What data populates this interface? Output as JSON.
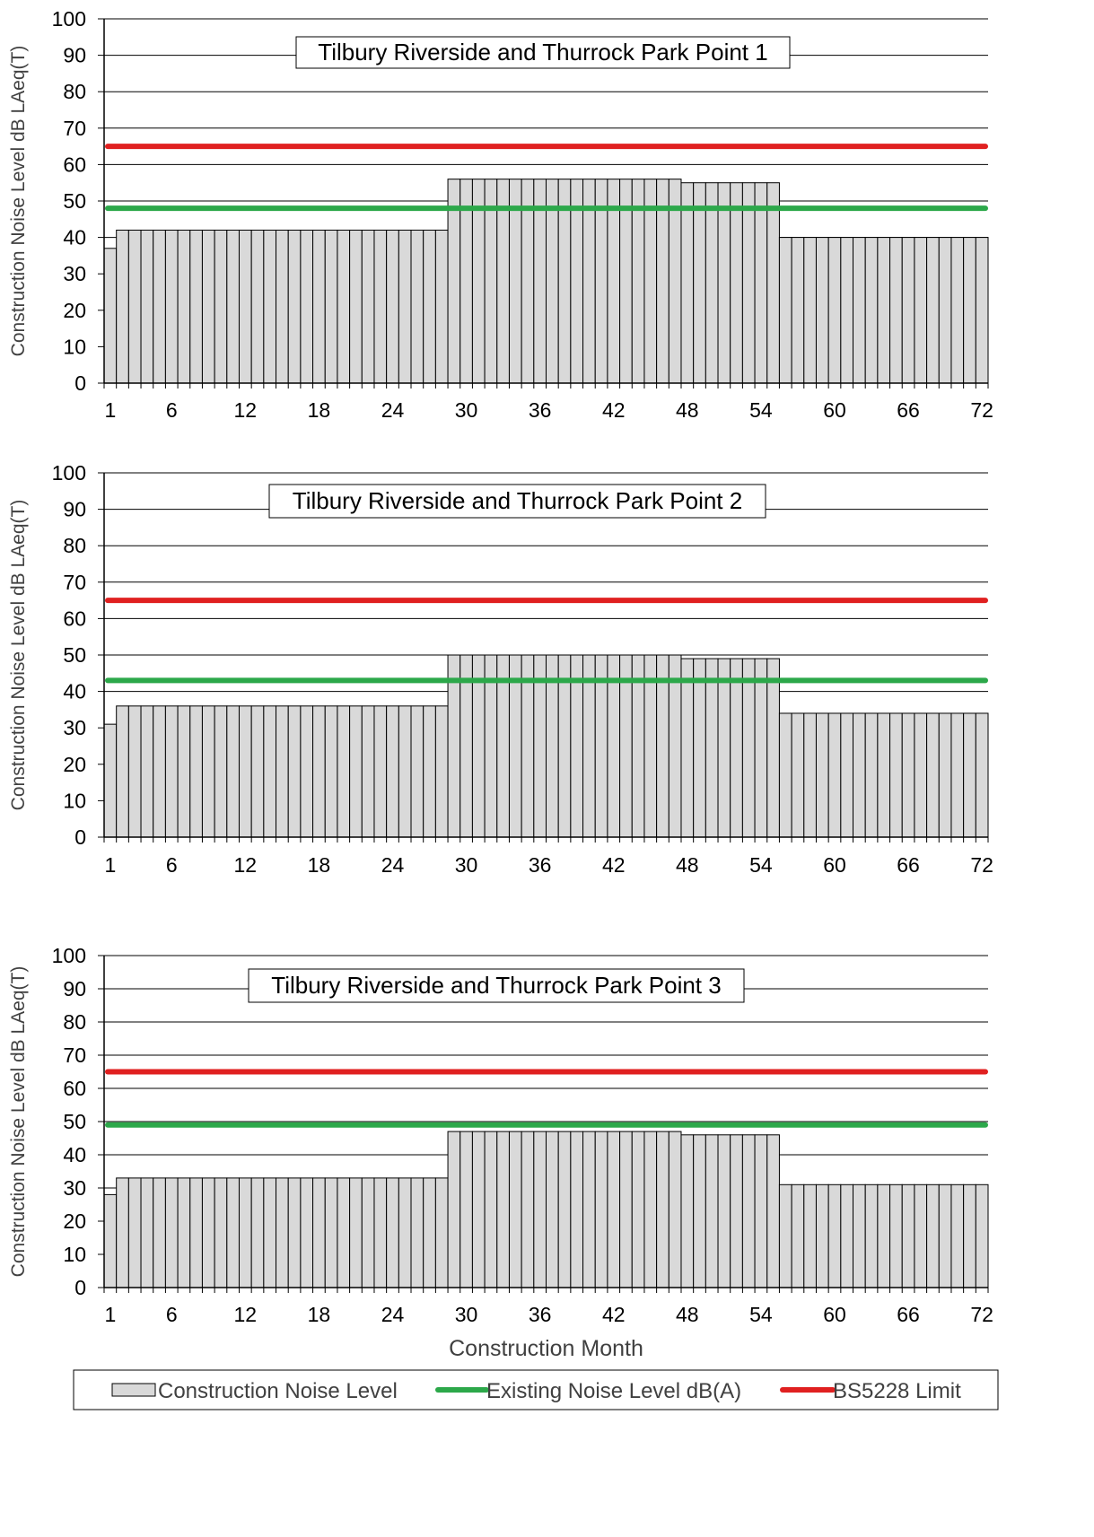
{
  "chart_data": [
    {
      "type": "bar",
      "title": "Tilbury Riverside and Thurrock Park Point 1",
      "ylabel": "Construction Noise Level dB LAeq(T)",
      "xlabel": "",
      "ylim": [
        0,
        100
      ],
      "yticks": [
        0,
        10,
        20,
        30,
        40,
        50,
        60,
        70,
        80,
        90,
        100
      ],
      "xtick_labels": [
        "1",
        "6",
        "12",
        "18",
        "24",
        "30",
        "36",
        "42",
        "48",
        "54",
        "60",
        "66",
        "72"
      ],
      "x": [
        1,
        72
      ],
      "segments": [
        {
          "from": 1,
          "to": 1,
          "value": 37
        },
        {
          "from": 2,
          "to": 28,
          "value": 42
        },
        {
          "from": 29,
          "to": 47,
          "value": 56
        },
        {
          "from": 48,
          "to": 55,
          "value": 55
        },
        {
          "from": 56,
          "to": 72,
          "value": 40
        }
      ],
      "lines": [
        {
          "name": "Existing Noise Level dB(A)",
          "value": 48,
          "color": "#2ca84a"
        },
        {
          "name": "BS5228 Limit",
          "value": 65,
          "color": "#e02020"
        }
      ],
      "grid": true
    },
    {
      "type": "bar",
      "title": "Tilbury Riverside and Thurrock Park Point 2",
      "ylabel": "Construction Noise Level dB LAeq(T)",
      "xlabel": "",
      "ylim": [
        0,
        100
      ],
      "yticks": [
        0,
        10,
        20,
        30,
        40,
        50,
        60,
        70,
        80,
        90,
        100
      ],
      "xtick_labels": [
        "1",
        "6",
        "12",
        "18",
        "24",
        "30",
        "36",
        "42",
        "48",
        "54",
        "60",
        "66",
        "72"
      ],
      "x": [
        1,
        72
      ],
      "segments": [
        {
          "from": 1,
          "to": 1,
          "value": 31
        },
        {
          "from": 2,
          "to": 28,
          "value": 36
        },
        {
          "from": 29,
          "to": 47,
          "value": 50
        },
        {
          "from": 48,
          "to": 55,
          "value": 49
        },
        {
          "from": 56,
          "to": 72,
          "value": 34
        }
      ],
      "lines": [
        {
          "name": "Existing Noise Level dB(A)",
          "value": 43,
          "color": "#2ca84a"
        },
        {
          "name": "BS5228 Limit",
          "value": 65,
          "color": "#e02020"
        }
      ],
      "grid": true
    },
    {
      "type": "bar",
      "title": "Tilbury Riverside and Thurrock Park Point 3",
      "ylabel": "Construction Noise Level dB LAeq(T)",
      "xlabel": "Construction Month",
      "ylim": [
        0,
        100
      ],
      "yticks": [
        0,
        10,
        20,
        30,
        40,
        50,
        60,
        70,
        80,
        90,
        100
      ],
      "xtick_labels": [
        "1",
        "6",
        "12",
        "18",
        "24",
        "30",
        "36",
        "42",
        "48",
        "54",
        "60",
        "66",
        "72"
      ],
      "x": [
        1,
        72
      ],
      "segments": [
        {
          "from": 1,
          "to": 1,
          "value": 28
        },
        {
          "from": 2,
          "to": 28,
          "value": 33
        },
        {
          "from": 29,
          "to": 47,
          "value": 47
        },
        {
          "from": 48,
          "to": 55,
          "value": 46
        },
        {
          "from": 56,
          "to": 72,
          "value": 31
        }
      ],
      "lines": [
        {
          "name": "Existing Noise Level dB(A)",
          "value": 49,
          "color": "#2ca84a"
        },
        {
          "name": "BS5228 Limit",
          "value": 65,
          "color": "#e02020"
        }
      ],
      "grid": true
    }
  ],
  "legend": {
    "placement": "bottom",
    "items": [
      {
        "label": "Construction Noise Level",
        "kind": "bar",
        "color": "#d9d9d9"
      },
      {
        "label": "Existing Noise Level dB(A)",
        "kind": "line",
        "color": "#2ca84a"
      },
      {
        "label": "BS5228 Limit",
        "kind": "line",
        "color": "#e02020"
      }
    ]
  }
}
